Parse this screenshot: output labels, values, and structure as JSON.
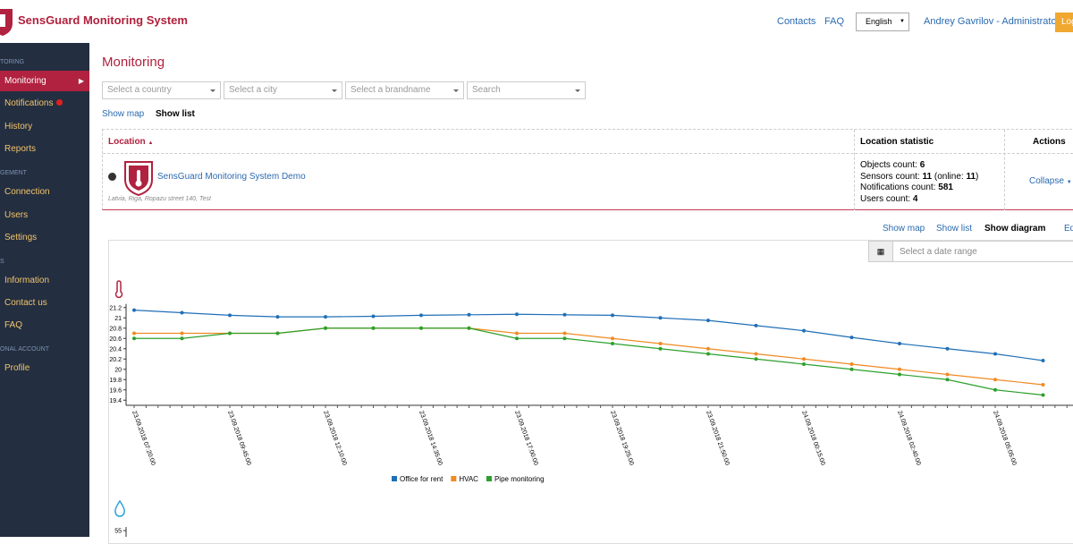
{
  "header": {
    "brand": "SensGuard Monitoring System",
    "nav": [
      "Contacts",
      "FAQ"
    ],
    "language": "English",
    "user": "Andrey Gavrilov - Administrator",
    "button": "Log"
  },
  "sidebar": {
    "sections": [
      {
        "title": "TORING",
        "items": [
          "Monitoring",
          "Notifications",
          "History",
          "Reports"
        ]
      },
      {
        "title": "GEMENT",
        "items": [
          "Connection",
          "Users",
          "Settings"
        ]
      },
      {
        "title": "S",
        "items": [
          "Information",
          "Contact us",
          "FAQ"
        ]
      },
      {
        "title": "ONAL ACCOUNT",
        "items": [
          "Profile"
        ]
      }
    ]
  },
  "main": {
    "title": "Monitoring",
    "filters": [
      "Select a country",
      "Select a city",
      "Select a brandname",
      "Search"
    ],
    "view_links": [
      "Show map",
      "Show list"
    ],
    "table": {
      "headers": [
        "Location",
        "Location statistic",
        "Actions"
      ],
      "rows": [
        {
          "name": "SensGuard Monitoring System Demo",
          "address": "Latvia, Riga, Ropazu street 140, Test",
          "statistics": [
            {
              "label": "Objects count:",
              "value": 6
            },
            {
              "label": "Sensors count:",
              "value": 11,
              "online_prefix": "(online:",
              "online": 11,
              "online_suffix": ")"
            },
            {
              "label": "Notifications count:",
              "value": 581
            },
            {
              "label": "Users count:",
              "value": 4
            }
          ],
          "action": "Collapse"
        }
      ]
    },
    "panel_links": [
      "Show map",
      "Show list",
      "Show diagram",
      "Ed"
    ],
    "date_range": "Select a date range"
  },
  "chart_data": [
    {
      "type": "line",
      "categories": [
        "23.09.2018 07:20:00",
        null,
        "23.09.2018 09:45:00",
        null,
        "23.09.2018 12:10:00",
        null,
        "23.09.2018 14:35:00",
        null,
        "23.09.2018 17:00:00",
        null,
        "23.09.2018 19:25:00",
        null,
        "23.09.2018 21:50:00",
        null,
        "24.09.2018 00:15:00",
        null,
        "24.09.2018 02:40:00",
        null,
        "24.09.2018 05:05:00",
        null
      ],
      "series": [
        {
          "name": "Office for rent",
          "color": "#1f6fb8",
          "values": [
            21.15,
            21.1,
            21.05,
            21.02,
            21.02,
            21.03,
            21.05,
            21.06,
            21.07,
            21.06,
            21.05,
            21.0,
            20.95,
            20.85,
            20.75,
            20.62,
            20.5,
            20.4,
            20.3,
            20.17
          ]
        },
        {
          "name": "HVAC",
          "color": "#f08a24",
          "values": [
            20.7,
            20.7,
            20.7,
            20.7,
            20.8,
            20.8,
            20.8,
            20.8,
            20.7,
            20.7,
            20.6,
            20.5,
            20.4,
            20.3,
            20.2,
            20.1,
            20.0,
            19.9,
            19.8,
            19.7
          ]
        },
        {
          "name": "Pipe monitoring",
          "color": "#2ca02c",
          "values": [
            20.6,
            20.6,
            20.7,
            20.7,
            20.8,
            20.8,
            20.8,
            20.8,
            20.6,
            20.6,
            20.5,
            20.4,
            20.3,
            20.2,
            20.1,
            20.0,
            19.9,
            19.8,
            19.6,
            19.5
          ]
        }
      ],
      "ylim": [
        19.3,
        21.3
      ],
      "yticks": [
        19.4,
        19.6,
        19.8,
        20,
        20.2,
        20.4,
        20.6,
        20.8,
        21,
        21.2
      ]
    },
    {
      "type": "line",
      "ylim": [
        54,
        56
      ],
      "yticks": [
        55
      ]
    }
  ]
}
